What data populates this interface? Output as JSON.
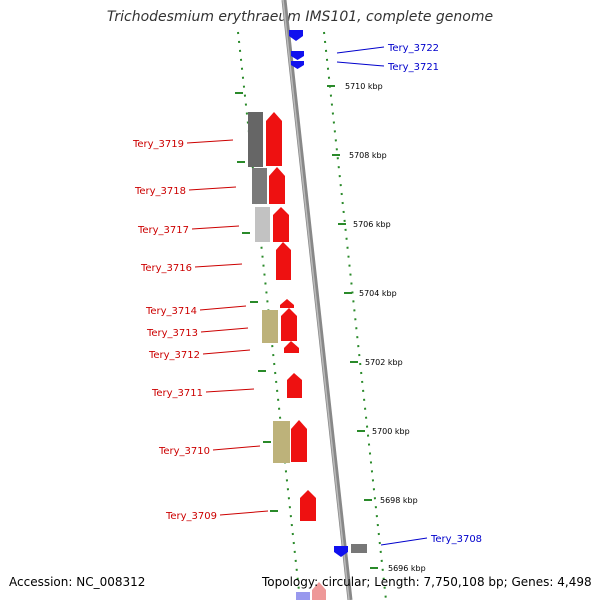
{
  "title": "Trichodesmium erythraeum IMS101, complete genome",
  "footer": {
    "accession": "Accession: NC_008312",
    "summary": "Topology: circular; Length: 7,750,108 bp; Genes: 4,498"
  },
  "colors": {
    "forward_gene": "#ee1111",
    "reverse_gene": "#1111ee",
    "label_reverse": "#cc0000",
    "label_forward": "#0000cc",
    "tick": "#2a8a2a",
    "backbone": "#888888"
  },
  "scale_labels": [
    "5710 kbp",
    "5708 kbp",
    "5706 kbp",
    "5704 kbp",
    "5702 kbp",
    "5700 kbp",
    "5698 kbp",
    "5696 kbp"
  ],
  "genes_left": [
    "Tery_3719",
    "Tery_3718",
    "Tery_3717",
    "Tery_3716",
    "Tery_3714",
    "Tery_3713",
    "Tery_3712",
    "Tery_3711",
    "Tery_3710",
    "Tery_3709"
  ],
  "genes_right": [
    "Tery_3722",
    "Tery_3721",
    "Tery_3708"
  ]
}
